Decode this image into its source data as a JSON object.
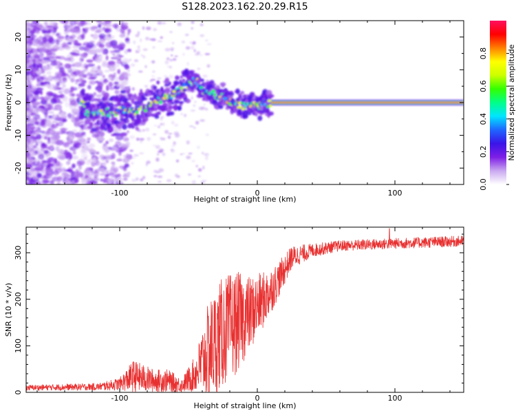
{
  "title": "S128.2023.162.20.29.R15",
  "chart_data": [
    {
      "type": "heatmap",
      "xlabel": "Height of straight line (km)",
      "ylabel": "Frequency (Hz)",
      "xlim": [
        -168,
        150
      ],
      "ylim": [
        -25,
        25
      ],
      "xticks": [
        -100,
        0,
        100
      ],
      "yticks": [
        -20,
        -10,
        0,
        10,
        20
      ],
      "colorbar": {
        "label": "Normalized spectral amplitude",
        "range": [
          0,
          1
        ],
        "ticks": [
          0.0,
          0.2,
          0.4,
          0.6,
          0.8
        ],
        "tick_labels": [
          "0.0",
          "0.2",
          "0.4",
          "0.6",
          "0.8"
        ],
        "colors": [
          "#ffffff",
          "#c9a8f0",
          "#7e1fe6",
          "#3a14e8",
          "#1f66ff",
          "#00e5ff",
          "#00ff88",
          "#33ff00",
          "#ccff00",
          "#ffff00",
          "#ff8000",
          "#ff0000",
          "#ff1060"
        ]
      },
      "ridge": [
        {
          "x": -125,
          "y": -3.0
        },
        {
          "x": -110,
          "y": -3.0
        },
        {
          "x": -95,
          "y": -2.5
        },
        {
          "x": -85,
          "y": -2.5
        },
        {
          "x": -75,
          "y": 0.0
        },
        {
          "x": -65,
          "y": 2.0
        },
        {
          "x": -55,
          "y": 4.0
        },
        {
          "x": -45,
          "y": 7.0
        },
        {
          "x": -40,
          "y": 4.0
        },
        {
          "x": -30,
          "y": 2.5
        },
        {
          "x": -20,
          "y": 0.5
        },
        {
          "x": -10,
          "y": -1.0
        },
        {
          "x": 0,
          "y": -1.0
        },
        {
          "x": 10,
          "y": 0.0
        },
        {
          "x": 150,
          "y": 0.0
        }
      ],
      "line_band_x": [
        10,
        150
      ],
      "line_band_y": 0
    },
    {
      "type": "line",
      "xlabel": "Height of straight line (km)",
      "ylabel": "SNR (10 * v/v)",
      "xlim": [
        -168,
        150
      ],
      "ylim": [
        0,
        355
      ],
      "xticks": [
        -100,
        0,
        100
      ],
      "yticks": [
        0,
        100,
        200,
        300
      ],
      "color": "#e83030",
      "envelope": [
        {
          "x": -168,
          "base": 10,
          "noise": 6
        },
        {
          "x": -115,
          "base": 12,
          "noise": 8
        },
        {
          "x": -100,
          "base": 18,
          "noise": 14
        },
        {
          "x": -90,
          "base": 35,
          "noise": 35
        },
        {
          "x": -75,
          "base": 25,
          "noise": 25
        },
        {
          "x": -65,
          "base": 25,
          "noise": 25
        },
        {
          "x": -55,
          "base": 15,
          "noise": 15
        },
        {
          "x": -45,
          "base": 40,
          "noise": 40
        },
        {
          "x": -35,
          "base": 90,
          "noise": 110
        },
        {
          "x": -25,
          "base": 130,
          "noise": 120
        },
        {
          "x": -15,
          "base": 150,
          "noise": 110
        },
        {
          "x": -5,
          "base": 170,
          "noise": 80
        },
        {
          "x": 5,
          "base": 200,
          "noise": 60
        },
        {
          "x": 15,
          "base": 240,
          "noise": 40
        },
        {
          "x": 25,
          "base": 290,
          "noise": 25
        },
        {
          "x": 40,
          "base": 305,
          "noise": 15
        },
        {
          "x": 60,
          "base": 315,
          "noise": 12
        },
        {
          "x": 100,
          "base": 320,
          "noise": 12
        },
        {
          "x": 150,
          "base": 325,
          "noise": 12
        }
      ],
      "spike": {
        "x": 96,
        "y": 352
      }
    }
  ]
}
